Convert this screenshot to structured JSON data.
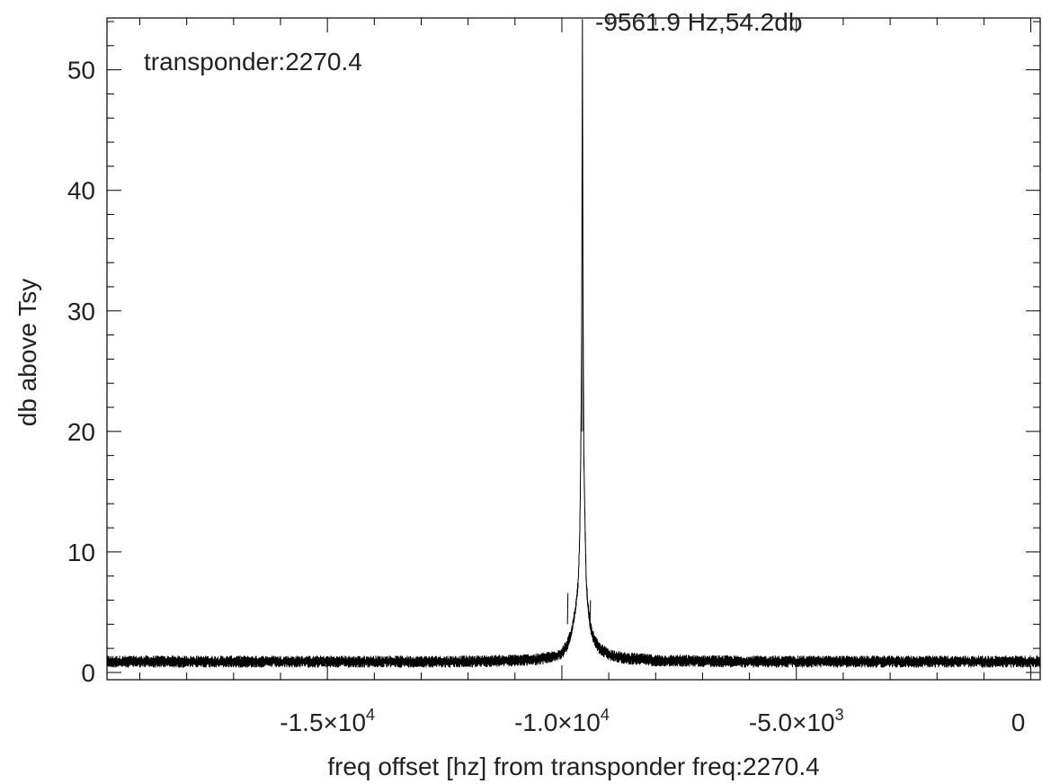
{
  "chart_data": {
    "type": "line",
    "title": "",
    "xlabel": "freq offset [hz] from transponder freq:2270.4",
    "ylabel": "db above Tsy",
    "xlim": [
      -19700,
      200
    ],
    "ylim": [
      -0.6,
      54.3
    ],
    "x_ticks": [
      {
        "value": -15000,
        "mantissa": "-1.5×10",
        "exp": "4"
      },
      {
        "value": -10000,
        "mantissa": "-1.0×10",
        "exp": "4"
      },
      {
        "value": -5000,
        "mantissa": "-5.0×10",
        "exp": "3"
      },
      {
        "value": 0,
        "mantissa": "0",
        "exp": ""
      }
    ],
    "y_ticks": [
      0,
      10,
      20,
      30,
      40,
      50
    ],
    "annotations": {
      "transponder": "transponder:2270.4",
      "peak": "-9561.9 Hz,54.2db"
    },
    "series": [
      {
        "x": [
          -19700,
          -18000,
          -16000,
          -14000,
          -12000,
          -11000,
          -10500,
          -10200,
          -10000,
          -9900,
          -9800,
          -9750,
          -9700,
          -9680,
          -9650,
          -9620,
          -9600,
          -9580,
          -9570,
          -9562,
          -9555,
          -9545,
          -9530,
          -9500,
          -9480,
          -9450,
          -9420,
          -9380,
          -9300,
          -9200,
          -9000,
          -8700,
          -8000,
          -6000,
          -4000,
          -2000,
          0,
          200
        ],
        "y": [
          0.9,
          0.9,
          0.9,
          0.9,
          0.9,
          1.0,
          1.1,
          1.3,
          1.6,
          2.2,
          3.2,
          4.3,
          5.5,
          6.3,
          7.5,
          11.0,
          17.0,
          26.0,
          38.0,
          54.2,
          38.0,
          27.0,
          17.5,
          11.0,
          7.5,
          5.8,
          4.6,
          3.6,
          2.6,
          2.0,
          1.5,
          1.2,
          1.0,
          0.9,
          0.9,
          0.9,
          0.9,
          0.9
        ]
      }
    ],
    "noise_amplitude_db": 0.5,
    "grid": false,
    "legend": "none",
    "line_color": "#000000"
  }
}
